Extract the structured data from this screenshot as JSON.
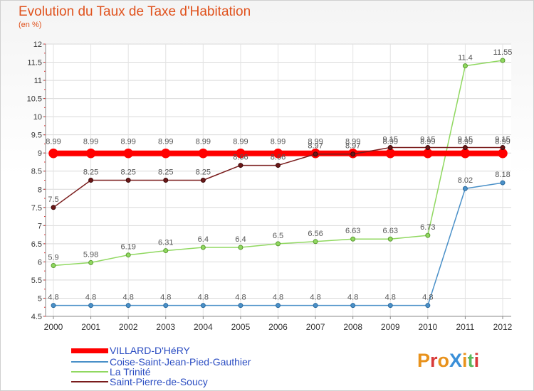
{
  "chart_data": {
    "type": "line",
    "title": "Evolution du Taux de Taxe d'Habitation",
    "unit_label": "(en %)",
    "x": [
      "2000",
      "2001",
      "2002",
      "2003",
      "2004",
      "2005",
      "2006",
      "2007",
      "2008",
      "2009",
      "2010",
      "2011",
      "2012"
    ],
    "ylim": [
      4.5,
      12
    ],
    "yticks": [
      "4.5",
      "5",
      "5.5",
      "6",
      "6.5",
      "7",
      "7.5",
      "8",
      "8.5",
      "9",
      "9.5",
      "10",
      "10.5",
      "11",
      "11.5",
      "12"
    ],
    "grid": true,
    "legend_position": "bottom-left",
    "series": [
      {
        "name": "VILLARD-D'HéRY",
        "color": "#ff0000",
        "values": [
          8.99,
          8.99,
          8.99,
          8.99,
          8.99,
          8.99,
          8.99,
          8.99,
          8.99,
          8.99,
          8.99,
          8.99,
          8.99
        ],
        "labels": [
          "8.99",
          "8.99",
          "8.99",
          "8.99",
          "8.99",
          "8.99",
          "8.99",
          "8.99",
          "8.99",
          "8.99",
          "8.99",
          "8.99",
          "8.99"
        ]
      },
      {
        "name": "Coise-Saint-Jean-Pied-Gauthier",
        "color": "#4a90c8",
        "values": [
          4.8,
          4.8,
          4.8,
          4.8,
          4.8,
          4.8,
          4.8,
          4.8,
          4.8,
          4.8,
          4.8,
          8.02,
          8.18
        ],
        "labels": [
          "4.8",
          "4.8",
          "4.8",
          "4.8",
          "4.8",
          "4.8",
          "4.8",
          "4.8",
          "4.8",
          "4.8",
          "4.8",
          "8.02",
          "8.18"
        ]
      },
      {
        "name": "La Trinité",
        "color": "#90d860",
        "values": [
          5.9,
          5.98,
          6.19,
          6.31,
          6.4,
          6.4,
          6.5,
          6.56,
          6.63,
          6.63,
          6.73,
          11.4,
          11.55
        ],
        "labels": [
          "5.9",
          "5.98",
          "6.19",
          "6.31",
          "6.4",
          "6.4",
          "6.5",
          "6.56",
          "6.63",
          "6.63",
          "6.73",
          "11.4",
          "11.55"
        ]
      },
      {
        "name": "Saint-Pierre-de-Soucy",
        "color": "#7a1c1c",
        "values": [
          7.5,
          8.25,
          8.25,
          8.25,
          8.25,
          8.66,
          8.66,
          8.97,
          8.97,
          9.15,
          9.15,
          9.15,
          9.15
        ],
        "labels": [
          "7.5",
          "8.25",
          "8.25",
          "8.25",
          "8.25",
          "8.66",
          "8.66",
          "8.97",
          "8.97",
          "9.15",
          "9.15",
          "9.15",
          "9.15"
        ]
      }
    ]
  },
  "logo": {
    "text": "ProXiti"
  }
}
